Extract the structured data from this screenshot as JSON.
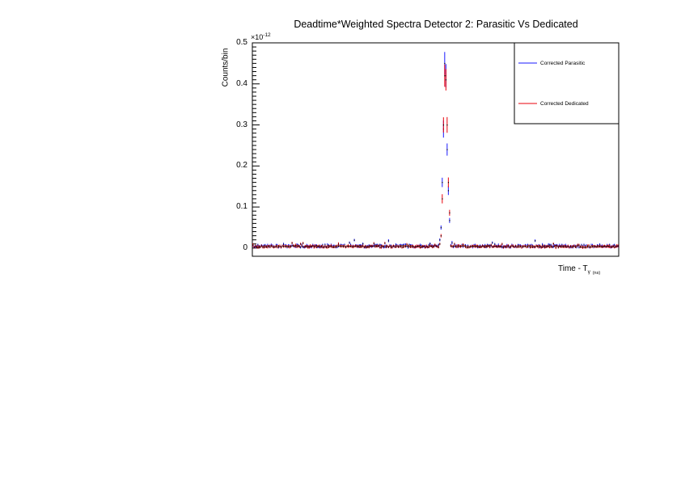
{
  "chart_data": {
    "type": "scatter",
    "title": "Deadtime*Weighted Spectra Detector 2: Parasitic Vs Dedicated",
    "ylabel": "Counts/bin",
    "xlabel_main": "Time - T",
    "xlabel_sub": "γ",
    "xlabel_unit": "(ns)",
    "y_exponent_base": "×10",
    "y_exponent": "-12",
    "ylim": [
      -0.02,
      0.5
    ],
    "yticks": [
      "0",
      "0.1",
      "0.2",
      "0.3",
      "0.4",
      "0.5"
    ],
    "ytick_values": [
      0,
      0.1,
      0.2,
      0.3,
      0.4,
      0.5
    ],
    "xlim": [
      0,
      100
    ],
    "legend_position": "top-right",
    "grid": false,
    "series": [
      {
        "name": "Corrected Parasitic",
        "color": "#1a1aff",
        "baseline": 0.004,
        "noise": 0.006,
        "peak": {
          "x": 52.8,
          "values": [
            0.02,
            0.05,
            0.16,
            0.29,
            0.45,
            0.42,
            0.24,
            0.14,
            0.06,
            0.03
          ]
        }
      },
      {
        "name": "Corrected Dedicated",
        "color": "#e8000b",
        "baseline": 0.003,
        "noise": 0.004,
        "peak": {
          "x": 52.8,
          "values": [
            0.01,
            0.03,
            0.12,
            0.3,
            0.42,
            0.41,
            0.3,
            0.16,
            0.08,
            0.02
          ]
        }
      }
    ]
  }
}
